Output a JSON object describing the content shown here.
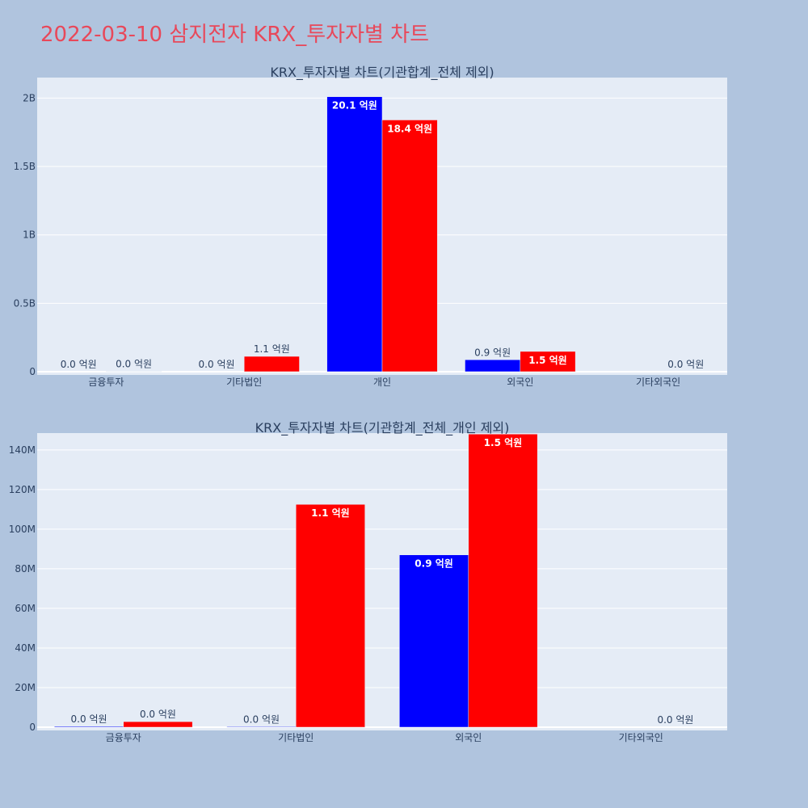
{
  "page_title": "2022-03-10 삼지전자 KRX_투자자별 차트",
  "colors": {
    "buy": "#0000ff",
    "sell": "#ff0000",
    "background": "#b0c4de",
    "plot_bg": "#e5ecf6",
    "title": "#e8485a"
  },
  "chart_data": [
    {
      "type": "bar",
      "title": "KRX_투자자별 차트(기관합계_전체 제외)",
      "categories": [
        "금융투자",
        "기타법인",
        "개인",
        "외국인",
        "기타외국인"
      ],
      "series": [
        {
          "color": "#0000ff",
          "values": [
            0,
            0,
            2010000000,
            87000000,
            0
          ],
          "labels": [
            "0.0 억원",
            "0.0 억원",
            "20.1 억원",
            "0.9 억원",
            ""
          ]
        },
        {
          "color": "#ff0000",
          "values": [
            2800000,
            112000000,
            1840000000,
            148000000,
            0
          ],
          "labels": [
            "0.0 억원",
            "1.1 억원",
            "18.4 억원",
            "1.5 억원",
            "0.0 억원"
          ]
        }
      ],
      "ylim": [
        0,
        2150000000
      ],
      "yticks": [
        0,
        500000000,
        1000000000,
        1500000000,
        2000000000
      ],
      "ytick_labels": [
        "0",
        "0.5B",
        "1B",
        "1.5B",
        "2B"
      ],
      "grid": true
    },
    {
      "type": "bar",
      "title": "KRX_투자자별 차트(기관합계_전체_개인 제외)",
      "categories": [
        "금융투자",
        "기타법인",
        "외국인",
        "기타외국인"
      ],
      "series": [
        {
          "color": "#0000ff",
          "values": [
            400000,
            300000,
            87000000,
            0
          ],
          "labels": [
            "0.0 억원",
            "0.0 억원",
            "0.9 억원",
            ""
          ]
        },
        {
          "color": "#ff0000",
          "values": [
            2800000,
            112500000,
            148000000,
            0
          ],
          "labels": [
            "0.0 억원",
            "1.1 억원",
            "1.5 억원",
            "0.0 억원"
          ]
        }
      ],
      "ylim": [
        0,
        148500000
      ],
      "yticks": [
        0,
        20000000,
        40000000,
        60000000,
        80000000,
        100000000,
        120000000,
        140000000
      ],
      "ytick_labels": [
        "0",
        "20M",
        "40M",
        "60M",
        "80M",
        "100M",
        "120M",
        "140M"
      ],
      "grid": true
    }
  ]
}
